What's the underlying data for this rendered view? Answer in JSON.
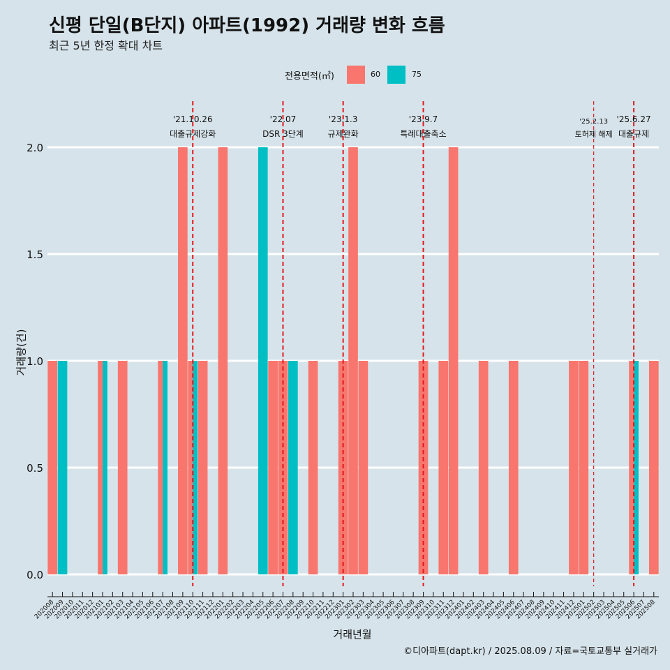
{
  "title": "신평 단일(B단지) 아파트(1992) 거래량 변화 흐름",
  "subtitle": "최근 5년 한정 확대 차트",
  "legend": {
    "title": "전용면적(㎡)",
    "items": [
      {
        "label": "60",
        "color": "#f8766d"
      },
      {
        "label": "75",
        "color": "#00bfc4"
      }
    ]
  },
  "caption": "©디아파트(dapt.kr) / 2025.08.09 / 자료=국토교통부 실거래가",
  "chart_data": {
    "type": "bar",
    "xlabel": "거래년월",
    "ylabel": "거래량(건)",
    "ylim": [
      0,
      2
    ],
    "yticks": [
      "0.0",
      "0.5",
      "1.0",
      "1.5",
      "2.0"
    ],
    "categories": [
      "202008",
      "202009",
      "202010",
      "202011",
      "202012",
      "202101",
      "202102",
      "202103",
      "202104",
      "202105",
      "202106",
      "202107",
      "202108",
      "202109",
      "202110",
      "202111",
      "202112",
      "202201",
      "202202",
      "202203",
      "202204",
      "202205",
      "202206",
      "202207",
      "202208",
      "202209",
      "202210",
      "202211",
      "202212",
      "202301",
      "202302",
      "202303",
      "202304",
      "202305",
      "202306",
      "202307",
      "202308",
      "202309",
      "202310",
      "202311",
      "202312",
      "202401",
      "202402",
      "202403",
      "202404",
      "202405",
      "202406",
      "202407",
      "202408",
      "202409",
      "202410",
      "202411",
      "202412",
      "202501",
      "202502",
      "202503",
      "202504",
      "202505",
      "202506",
      "202507",
      "202508"
    ],
    "series": [
      {
        "name": "60",
        "color": "#f8766d",
        "values": [
          1,
          0,
          0,
          0,
          0,
          1,
          0,
          1,
          0,
          0,
          0,
          1,
          0,
          2,
          1,
          1,
          0,
          2,
          0,
          0,
          0,
          0,
          1,
          1,
          0,
          0,
          1,
          0,
          0,
          1,
          2,
          1,
          0,
          0,
          0,
          0,
          0,
          1,
          0,
          1,
          2,
          0,
          0,
          1,
          0,
          0,
          1,
          0,
          0,
          0,
          0,
          0,
          1,
          1,
          0,
          0,
          0,
          0,
          1,
          0,
          1
        ]
      },
      {
        "name": "75",
        "color": "#00bfc4",
        "values": [
          0,
          1,
          0,
          0,
          0,
          1,
          0,
          0,
          0,
          0,
          0,
          1,
          0,
          0,
          1,
          0,
          0,
          0,
          0,
          0,
          0,
          2,
          0,
          0,
          1,
          0,
          0,
          0,
          0,
          0,
          0,
          0,
          0,
          0,
          0,
          0,
          0,
          0,
          0,
          0,
          0,
          0,
          0,
          0,
          0,
          0,
          0,
          0,
          0,
          0,
          0,
          0,
          0,
          0,
          0,
          0,
          0,
          0,
          1,
          0,
          0
        ]
      }
    ],
    "events": [
      {
        "category": "202110",
        "date": "'21.10.26",
        "label": "대출규제강화",
        "major": true
      },
      {
        "category": "202207",
        "date": "'22.07",
        "label": "DSR 3단계",
        "major": true
      },
      {
        "category": "202301",
        "date": "'23.1.3",
        "label": "규제완화",
        "major": true
      },
      {
        "category": "202309",
        "date": "'23.9.7",
        "label": "특례대출축소",
        "major": true
      },
      {
        "category": "202502",
        "date": "'25.2.13",
        "label": "토허제 해제",
        "major": false
      },
      {
        "category": "202506",
        "date": "'25.6.27",
        "label": "대출규제",
        "major": true
      }
    ],
    "grid": true,
    "legend_position": "top"
  }
}
